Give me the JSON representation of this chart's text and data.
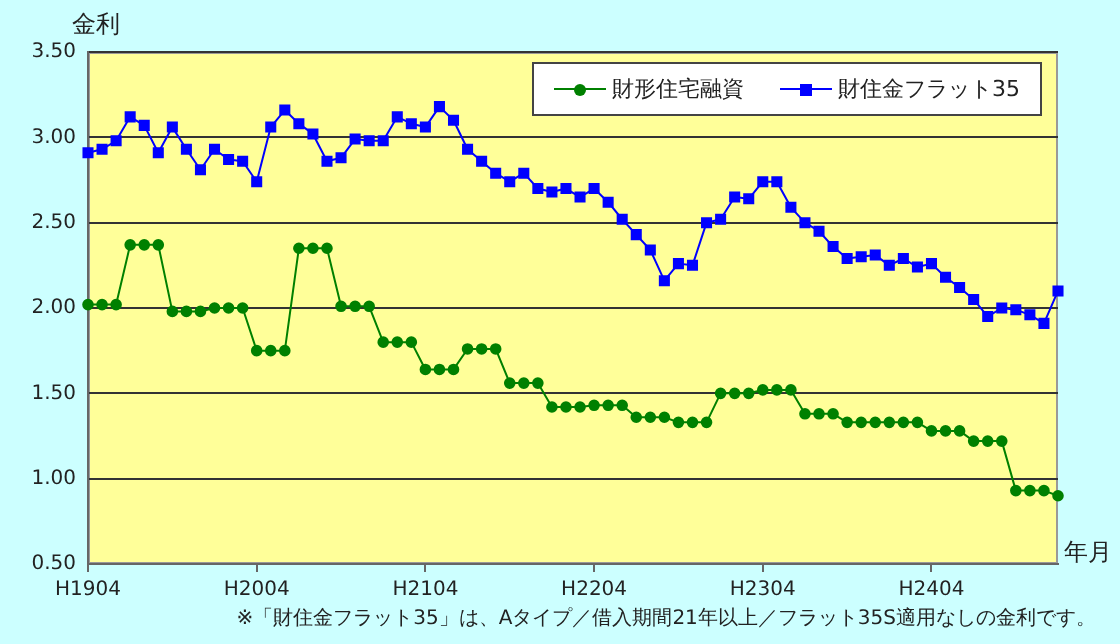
{
  "chart_data": {
    "type": "line",
    "ylabel": "金利",
    "xlabel": "年月",
    "categories": [
      "H1904",
      null,
      null,
      null,
      null,
      null,
      null,
      null,
      null,
      null,
      null,
      null,
      "H2004",
      null,
      null,
      null,
      null,
      null,
      null,
      null,
      null,
      null,
      null,
      null,
      "H2104",
      null,
      null,
      null,
      null,
      null,
      null,
      null,
      null,
      null,
      null,
      null,
      "H2204",
      null,
      null,
      null,
      null,
      null,
      null,
      null,
      null,
      null,
      null,
      null,
      "H2304",
      null,
      null,
      null,
      null,
      null,
      null,
      null,
      null,
      null,
      null,
      null,
      "H2404",
      null,
      null,
      null,
      null,
      null,
      null,
      null,
      null,
      null
    ],
    "series": [
      {
        "name": "財形住宅融資",
        "color": "#008000",
        "marker": "circle",
        "values": [
          2.02,
          2.02,
          2.02,
          2.37,
          2.37,
          2.37,
          1.98,
          1.98,
          1.98,
          2.0,
          2.0,
          2.0,
          1.75,
          1.75,
          1.75,
          2.35,
          2.35,
          2.35,
          2.01,
          2.01,
          2.01,
          1.8,
          1.8,
          1.8,
          1.64,
          1.64,
          1.64,
          1.76,
          1.76,
          1.76,
          1.56,
          1.56,
          1.56,
          1.42,
          1.42,
          1.42,
          1.43,
          1.43,
          1.43,
          1.36,
          1.36,
          1.36,
          1.33,
          1.33,
          1.33,
          1.5,
          1.5,
          1.5,
          1.52,
          1.52,
          1.52,
          1.38,
          1.38,
          1.38,
          1.33,
          1.33,
          1.33,
          1.33,
          1.33,
          1.33,
          1.28,
          1.28,
          1.28,
          1.22,
          1.22,
          1.22,
          0.93,
          0.93,
          0.93,
          0.9
        ]
      },
      {
        "name": "財住金フラット35",
        "color": "#0000ff",
        "marker": "square",
        "values": [
          2.91,
          2.93,
          2.98,
          3.12,
          3.07,
          2.91,
          3.06,
          2.93,
          2.81,
          2.93,
          2.87,
          2.86,
          2.74,
          3.06,
          3.16,
          3.08,
          3.02,
          2.86,
          2.88,
          2.99,
          2.98,
          2.98,
          3.12,
          3.08,
          3.06,
          3.18,
          3.1,
          2.93,
          2.86,
          2.79,
          2.74,
          2.79,
          2.7,
          2.68,
          2.7,
          2.65,
          2.7,
          2.62,
          2.52,
          2.43,
          2.34,
          2.16,
          2.26,
          2.25,
          2.5,
          2.52,
          2.65,
          2.64,
          2.74,
          2.74,
          2.59,
          2.5,
          2.45,
          2.36,
          2.29,
          2.3,
          2.31,
          2.25,
          2.29,
          2.24,
          2.26,
          2.18,
          2.12,
          2.05,
          1.95,
          2.0,
          1.99,
          1.96,
          1.91,
          2.1
        ]
      }
    ],
    "ylim": [
      0.5,
      3.5
    ],
    "yticks": [
      {
        "value": 0.5,
        "label": "0.50"
      },
      {
        "value": 1.0,
        "label": "1.00"
      },
      {
        "value": 1.5,
        "label": "1.50"
      },
      {
        "value": 2.0,
        "label": "2.00"
      },
      {
        "value": 2.5,
        "label": "2.50"
      },
      {
        "value": 3.0,
        "label": "3.00"
      },
      {
        "value": 3.5,
        "label": "3.50"
      }
    ],
    "grid": "y",
    "legend": "top right",
    "line_style": "solid",
    "annotations": [
      "※「財住金フラット35」は、Aタイプ／借入期間21年以上／フラット35S適用なしの金利です。"
    ]
  }
}
